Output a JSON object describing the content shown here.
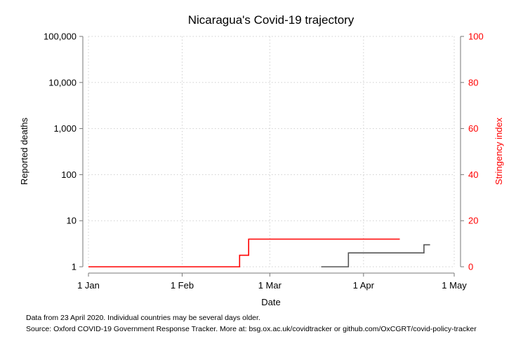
{
  "chart_data": {
    "type": "line",
    "title": "Nicaragua's Covid-19 trajectory",
    "xlabel": "Date",
    "ylabel_left": "Reported deaths",
    "ylabel_right": "Stringency index",
    "x_ticks": [
      {
        "date": "2020-01-01",
        "label": "1 Jan"
      },
      {
        "date": "2020-02-01",
        "label": "1 Feb"
      },
      {
        "date": "2020-03-01",
        "label": "1 Mar"
      },
      {
        "date": "2020-04-01",
        "label": "1 Apr"
      },
      {
        "date": "2020-05-01",
        "label": "1 May"
      }
    ],
    "xlim": [
      "2020-01-01",
      "2020-05-01"
    ],
    "y_left": {
      "scale": "log",
      "ylim": [
        1,
        100000
      ],
      "ticks": [
        {
          "value": 1,
          "label": "1"
        },
        {
          "value": 10,
          "label": "10"
        },
        {
          "value": 100,
          "label": "100"
        },
        {
          "value": 1000,
          "label": "1,000"
        },
        {
          "value": 10000,
          "label": "10,000"
        },
        {
          "value": 100000,
          "label": "100,000"
        }
      ]
    },
    "y_right": {
      "scale": "linear",
      "ylim": [
        0,
        100
      ],
      "ticks": [
        0,
        20,
        40,
        60,
        80,
        100
      ]
    },
    "grid": true,
    "series": [
      {
        "axis": "left",
        "color": "#555555",
        "step": true,
        "points": [
          {
            "date": "2020-03-18",
            "value": 1
          },
          {
            "date": "2020-03-26",
            "value": 1
          },
          {
            "date": "2020-03-27",
            "value": 2
          },
          {
            "date": "2020-04-20",
            "value": 2
          },
          {
            "date": "2020-04-21",
            "value": 3
          },
          {
            "date": "2020-04-23",
            "value": 3
          }
        ]
      },
      {
        "axis": "right",
        "color": "#ff0000",
        "step": true,
        "points": [
          {
            "date": "2020-01-01",
            "value": 0
          },
          {
            "date": "2020-02-19",
            "value": 0
          },
          {
            "date": "2020-02-20",
            "value": 5
          },
          {
            "date": "2020-02-22",
            "value": 5
          },
          {
            "date": "2020-02-23",
            "value": 12
          },
          {
            "date": "2020-04-13",
            "value": 12
          }
        ]
      }
    ]
  },
  "footnotes": {
    "line1": "Data from 23 April 2020. Individual countries may be several days older.",
    "line2": "Source: Oxford COVID-19 Government Response Tracker. More at: bsg.ox.ac.uk/covidtracker or github.com/OxCGRT/covid-policy-tracker"
  }
}
